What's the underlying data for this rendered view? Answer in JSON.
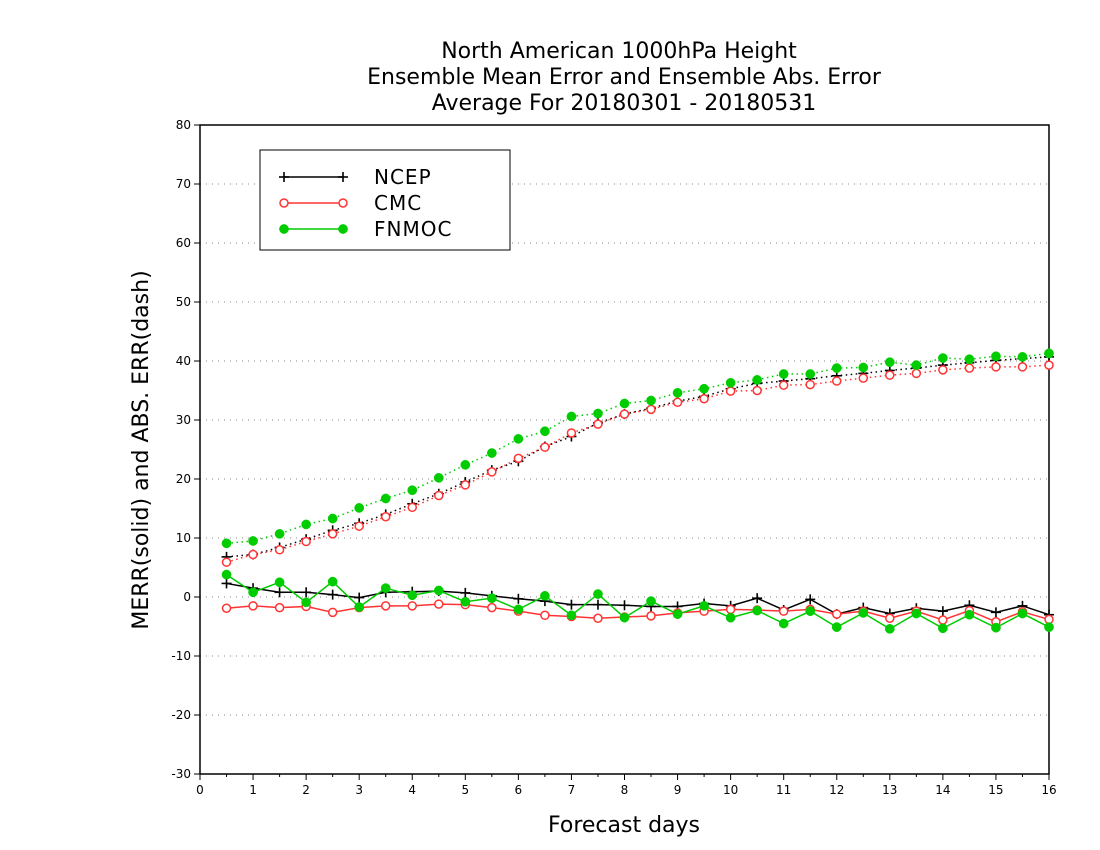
{
  "chart_data": {
    "type": "line",
    "title": [
      "North American 1000hPa Height",
      "Ensemble Mean Error and Ensemble Abs. Error",
      "Average For 20180301 - 20180531"
    ],
    "xlabel": "Forecast days",
    "ylabel": "MERR(solid) and ABS. ERR(dash)",
    "xlim": [
      0,
      16
    ],
    "ylim": [
      -30,
      80
    ],
    "x_ticks": [
      "0",
      "1",
      "2",
      "3",
      "4",
      "5",
      "6",
      "7",
      "8",
      "9",
      "10",
      "11",
      "12",
      "13",
      "14",
      "15",
      "16"
    ],
    "y_ticks": [
      "80",
      "70",
      "60",
      "50",
      "40",
      "30",
      "20",
      "10",
      "0",
      "-10",
      "-20",
      "-30"
    ],
    "grid": "horizontal dotted",
    "legend_position": "top-left",
    "x": [
      0.5,
      1,
      1.5,
      2,
      2.5,
      3,
      3.5,
      4,
      4.5,
      5,
      5.5,
      6,
      6.5,
      7,
      7.5,
      8,
      8.5,
      9,
      9.5,
      10,
      10.5,
      11,
      11.5,
      12,
      12.5,
      13,
      13.5,
      14,
      14.5,
      15,
      15.5,
      16
    ],
    "series": [
      {
        "name": "NCEP",
        "color": "#000000",
        "marker": "plus",
        "merr": [
          2.3,
          1.5,
          0.8,
          0.8,
          0.4,
          -0.1,
          0.8,
          0.9,
          1.0,
          0.7,
          0.2,
          -0.3,
          -0.7,
          -1.3,
          -1.3,
          -1.4,
          -1.6,
          -1.6,
          -1.1,
          -1.5,
          -0.2,
          -2.2,
          -0.4,
          -2.9,
          -1.8,
          -2.8,
          -1.9,
          -2.4,
          -1.4,
          -2.6,
          -1.5,
          -3.0
        ],
        "abs_err": [
          6.8,
          7.2,
          8.4,
          9.8,
          11.3,
          12.5,
          14.0,
          15.8,
          17.5,
          19.5,
          21.5,
          23.0,
          25.5,
          27.2,
          29.5,
          31.0,
          32.0,
          33.2,
          34.0,
          35.3,
          36.2,
          36.6,
          37.0,
          37.5,
          37.9,
          38.4,
          38.8,
          39.3,
          39.7,
          40.1,
          40.4,
          40.7
        ]
      },
      {
        "name": "CMC",
        "color": "#ff3333",
        "marker": "open-circle",
        "merr": [
          -1.9,
          -1.5,
          -1.8,
          -1.6,
          -2.6,
          -1.8,
          -1.5,
          -1.5,
          -1.2,
          -1.3,
          -1.8,
          -2.4,
          -3.1,
          -3.3,
          -3.6,
          -3.4,
          -3.2,
          -2.7,
          -2.4,
          -2.1,
          -2.2,
          -2.4,
          -2.1,
          -2.9,
          -2.4,
          -3.6,
          -2.4,
          -3.9,
          -2.3,
          -4.2,
          -2.5,
          -3.8
        ],
        "abs_err": [
          5.9,
          7.2,
          8.0,
          9.4,
          10.7,
          12.0,
          13.6,
          15.2,
          17.2,
          19.0,
          21.2,
          23.5,
          25.4,
          27.8,
          29.3,
          31.0,
          31.8,
          33.0,
          33.6,
          34.9,
          35.0,
          35.9,
          36.0,
          36.6,
          37.1,
          37.6,
          37.9,
          38.5,
          38.8,
          39.0,
          39.0,
          39.3
        ]
      },
      {
        "name": "FNMOC",
        "color": "#00cc00",
        "marker": "filled-circle",
        "merr": [
          3.8,
          0.8,
          2.5,
          -0.9,
          2.6,
          -1.7,
          1.5,
          0.3,
          1.1,
          -0.8,
          -0.2,
          -2.1,
          0.2,
          -3.1,
          0.5,
          -3.5,
          -0.7,
          -2.9,
          -1.5,
          -3.5,
          -2.3,
          -4.5,
          -2.4,
          -5.1,
          -2.7,
          -5.4,
          -2.8,
          -5.3,
          -3.0,
          -5.2,
          -2.8,
          -5.1
        ],
        "abs_err": [
          9.1,
          9.5,
          10.7,
          12.3,
          13.3,
          15.1,
          16.7,
          18.1,
          20.2,
          22.4,
          24.4,
          26.8,
          28.1,
          30.6,
          31.1,
          32.8,
          33.3,
          34.6,
          35.3,
          36.3,
          36.8,
          37.8,
          37.8,
          38.8,
          38.9,
          39.8,
          39.3,
          40.5,
          40.3,
          40.8,
          40.7,
          41.3
        ]
      }
    ]
  }
}
